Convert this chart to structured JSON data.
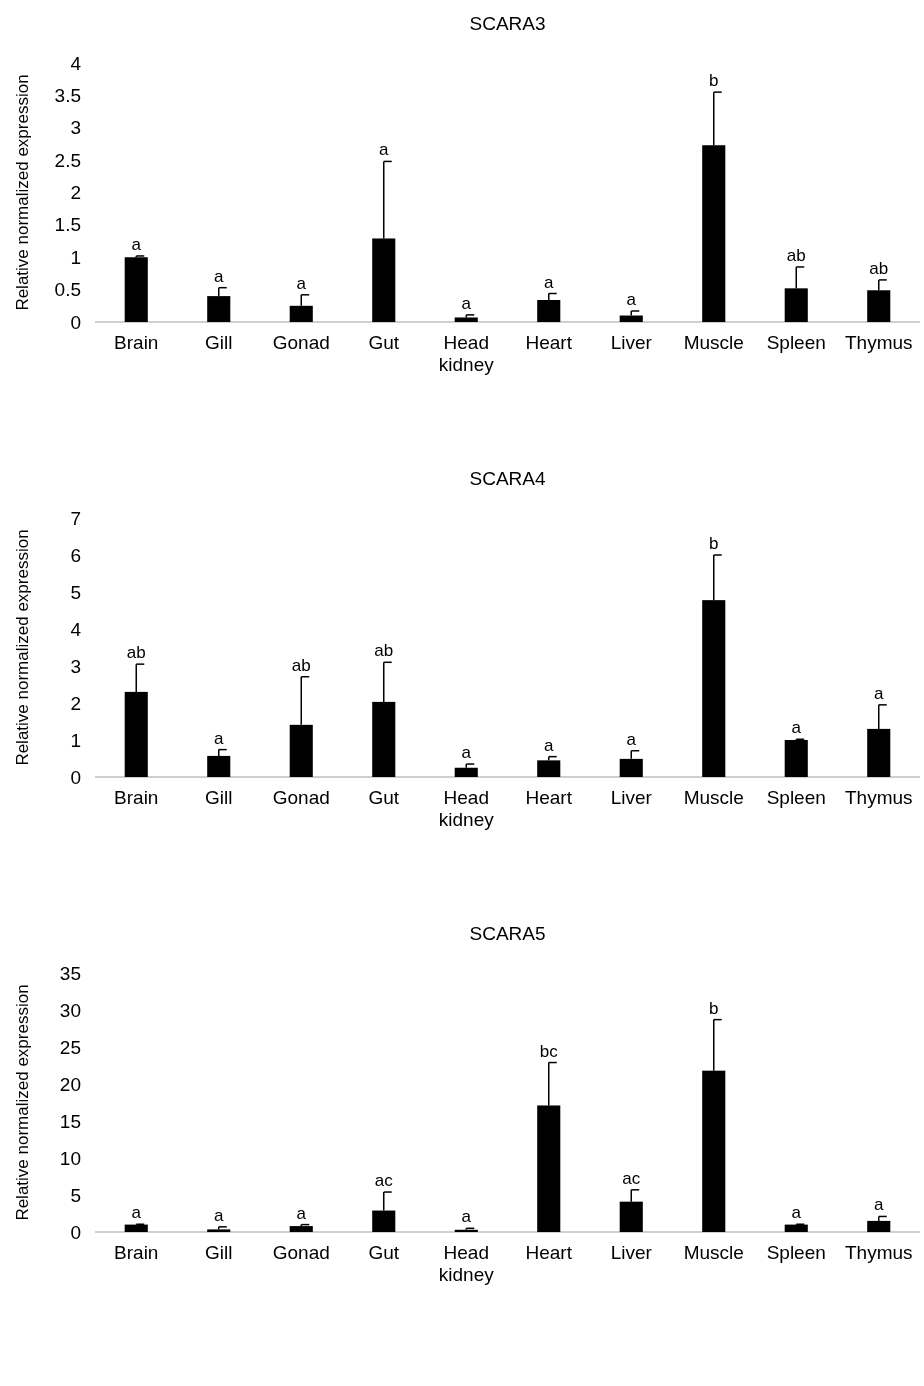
{
  "chart_data": [
    {
      "type": "bar",
      "title": "SCARA3",
      "ylabel": "Relative normalized expression",
      "categories": [
        "Brain",
        "Gill",
        "Gonad",
        "Gut",
        "Head kidney",
        "Heart",
        "Liver",
        "Muscle",
        "Spleen",
        "Thymus"
      ],
      "color": "#000000",
      "values": [
        1.0,
        0.4,
        0.25,
        1.29,
        0.07,
        0.34,
        0.1,
        2.73,
        0.52,
        0.49
      ],
      "errors": [
        [
          1.0,
          1.02
        ],
        [
          0.4,
          0.53
        ],
        [
          0.25,
          0.42
        ],
        [
          1.29,
          2.48
        ],
        [
          0.07,
          0.11
        ],
        [
          0.34,
          0.44
        ],
        [
          0.1,
          0.17
        ],
        [
          2.73,
          3.55
        ],
        [
          0.52,
          0.85
        ],
        [
          0.49,
          0.65
        ]
      ],
      "ylim": [
        0,
        4
      ],
      "yticks": [
        0,
        0.5,
        1,
        1.5,
        2,
        2.5,
        3,
        3.5,
        4
      ],
      "grid": false,
      "annotations": [
        {
          "text": "a",
          "x": "Brain",
          "y": 1.02
        },
        {
          "text": "a",
          "x": "Gill",
          "y": 0.53
        },
        {
          "text": "a",
          "x": "Gonad",
          "y": 0.42
        },
        {
          "text": "a",
          "x": "Gut",
          "y": 2.48
        },
        {
          "text": "a",
          "x": "Head kidney",
          "y": 0.11
        },
        {
          "text": "a",
          "x": "Heart",
          "y": 0.44
        },
        {
          "text": "a",
          "x": "Liver",
          "y": 0.17
        },
        {
          "text": "b",
          "x": "Muscle",
          "y": 3.55
        },
        {
          "text": "ab",
          "x": "Spleen",
          "y": 0.85
        },
        {
          "text": "ab",
          "x": "Thymus",
          "y": 0.65
        }
      ]
    },
    {
      "type": "bar",
      "title": "SCARA4",
      "ylabel": "Relative normalized expression",
      "categories": [
        "Brain",
        "Gill",
        "Gonad",
        "Gut",
        "Head kidney",
        "Heart",
        "Liver",
        "Muscle",
        "Spleen",
        "Thymus"
      ],
      "color": "#000000",
      "values": [
        2.3,
        0.57,
        1.41,
        2.03,
        0.25,
        0.45,
        0.49,
        4.78,
        1.0,
        1.3
      ],
      "errors": [
        [
          2.3,
          3.05
        ],
        [
          0.57,
          0.74
        ],
        [
          1.41,
          2.71
        ],
        [
          2.03,
          3.1
        ],
        [
          0.25,
          0.35
        ],
        [
          0.45,
          0.55
        ],
        [
          0.49,
          0.71
        ],
        [
          4.78,
          6.0
        ],
        [
          1.0,
          1.02
        ],
        [
          1.3,
          1.95
        ]
      ],
      "ylim": [
        0,
        7
      ],
      "yticks": [
        0,
        1,
        2,
        3,
        4,
        5,
        6,
        7
      ],
      "grid": false,
      "annotations": [
        {
          "text": "ab",
          "x": "Brain",
          "y": 3.05
        },
        {
          "text": "a",
          "x": "Gill",
          "y": 0.74
        },
        {
          "text": "ab",
          "x": "Gonad",
          "y": 2.71
        },
        {
          "text": "ab",
          "x": "Gut",
          "y": 3.1
        },
        {
          "text": "a",
          "x": "Head kidney",
          "y": 0.35
        },
        {
          "text": "a",
          "x": "Heart",
          "y": 0.55
        },
        {
          "text": "a",
          "x": "Liver",
          "y": 0.71
        },
        {
          "text": "b",
          "x": "Muscle",
          "y": 6.0
        },
        {
          "text": "a",
          "x": "Spleen",
          "y": 1.02
        },
        {
          "text": "a",
          "x": "Thymus",
          "y": 1.95
        }
      ]
    },
    {
      "type": "bar",
      "title": "SCARA5",
      "ylabel": "Relative normalized expression",
      "categories": [
        "Brain",
        "Gill",
        "Gonad",
        "Gut",
        "Head kidney",
        "Heart",
        "Liver",
        "Muscle",
        "Spleen",
        "Thymus"
      ],
      "color": "#000000",
      "values": [
        1.0,
        0.35,
        0.8,
        2.9,
        0.3,
        17.1,
        4.1,
        21.8,
        1.0,
        1.5
      ],
      "errors": [
        [
          1.0,
          1.05
        ],
        [
          0.35,
          0.7
        ],
        [
          0.8,
          1.0
        ],
        [
          2.9,
          5.4
        ],
        [
          0.3,
          0.5
        ],
        [
          17.1,
          22.9
        ],
        [
          4.1,
          5.7
        ],
        [
          21.8,
          28.7
        ],
        [
          1.0,
          1.05
        ],
        [
          1.5,
          2.1
        ]
      ],
      "ylim": [
        0,
        35
      ],
      "yticks": [
        0,
        5,
        10,
        15,
        20,
        25,
        30,
        35
      ],
      "grid": false,
      "annotations": [
        {
          "text": "a",
          "x": "Brain",
          "y": 1.05
        },
        {
          "text": "a",
          "x": "Gill",
          "y": 0.7
        },
        {
          "text": "a",
          "x": "Gonad",
          "y": 1.0
        },
        {
          "text": "ac",
          "x": "Gut",
          "y": 5.4
        },
        {
          "text": "a",
          "x": "Head kidney",
          "y": 0.5
        },
        {
          "text": "bc",
          "x": "Heart",
          "y": 22.9
        },
        {
          "text": "ac",
          "x": "Liver",
          "y": 5.7
        },
        {
          "text": "b",
          "x": "Muscle",
          "y": 28.7
        },
        {
          "text": "a",
          "x": "Spleen",
          "y": 1.05
        },
        {
          "text": "a",
          "x": "Thymus",
          "y": 2.1
        }
      ]
    }
  ]
}
